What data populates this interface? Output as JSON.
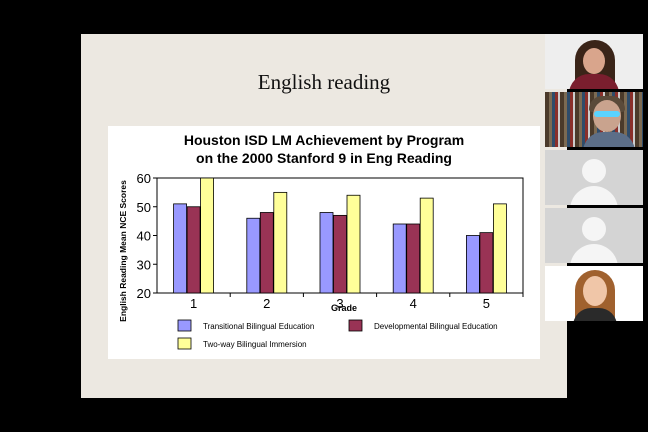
{
  "slide": {
    "title": "English reading"
  },
  "chart_data": {
    "type": "bar",
    "title_line1": "Houston ISD LM Achievement by Program",
    "title_line2": "on the 2000 Stanford 9 in Eng Reading",
    "xlabel": "Grade",
    "ylabel": "English Reading Mean NCE Scores",
    "categories": [
      "1",
      "2",
      "3",
      "4",
      "5"
    ],
    "yticks": [
      "20",
      "30",
      "40",
      "50",
      "60"
    ],
    "ylim": [
      20,
      60
    ],
    "grid": false,
    "legend_position": "bottom",
    "series": [
      {
        "name": "Transitional Bilingual Education",
        "color": "#9999ff",
        "values": [
          51,
          46,
          48,
          44,
          40
        ]
      },
      {
        "name": "Developmental Bilingual Education",
        "color": "#993355",
        "values": [
          50,
          48,
          47,
          44,
          41
        ]
      },
      {
        "name": "Two-way Bilingual Immersion",
        "color": "#ffff99",
        "values": [
          60,
          55,
          54,
          53,
          51
        ]
      }
    ]
  },
  "participants": [
    {
      "type": "video",
      "icon": "participant-video-icon"
    },
    {
      "type": "video",
      "icon": "participant-video-icon"
    },
    {
      "type": "avatar",
      "icon": "default-avatar-icon"
    },
    {
      "type": "avatar",
      "icon": "default-avatar-icon"
    },
    {
      "type": "video",
      "icon": "participant-video-icon"
    }
  ]
}
